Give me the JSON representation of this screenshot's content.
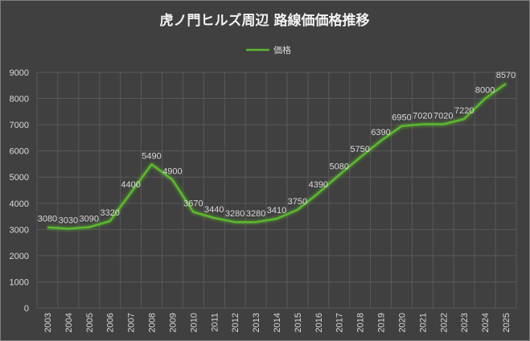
{
  "chart_data": {
    "type": "line",
    "title": "虎ノ門ヒルズ周辺 路線価価格推移",
    "legend_position": "top",
    "grid": true,
    "ylim": [
      0,
      9000
    ],
    "y_ticks": [
      0,
      1000,
      2000,
      3000,
      4000,
      5000,
      6000,
      7000,
      8000,
      9000
    ],
    "categories": [
      "2003",
      "2004",
      "2005",
      "2006",
      "2007",
      "2008",
      "2009",
      "2010",
      "2011",
      "2012",
      "2013",
      "2014",
      "2015",
      "2016",
      "2017",
      "2018",
      "2019",
      "2020",
      "2021",
      "2022",
      "2023",
      "2024",
      "2025"
    ],
    "series": [
      {
        "name": "価格",
        "color": "#5cb82e",
        "values": [
          3080,
          3030,
          3090,
          3320,
          4400,
          5490,
          4900,
          3670,
          3440,
          3280,
          3280,
          3410,
          3750,
          4390,
          5080,
          5750,
          6390,
          6950,
          7020,
          7020,
          7220,
          8000,
          8570
        ]
      }
    ]
  }
}
